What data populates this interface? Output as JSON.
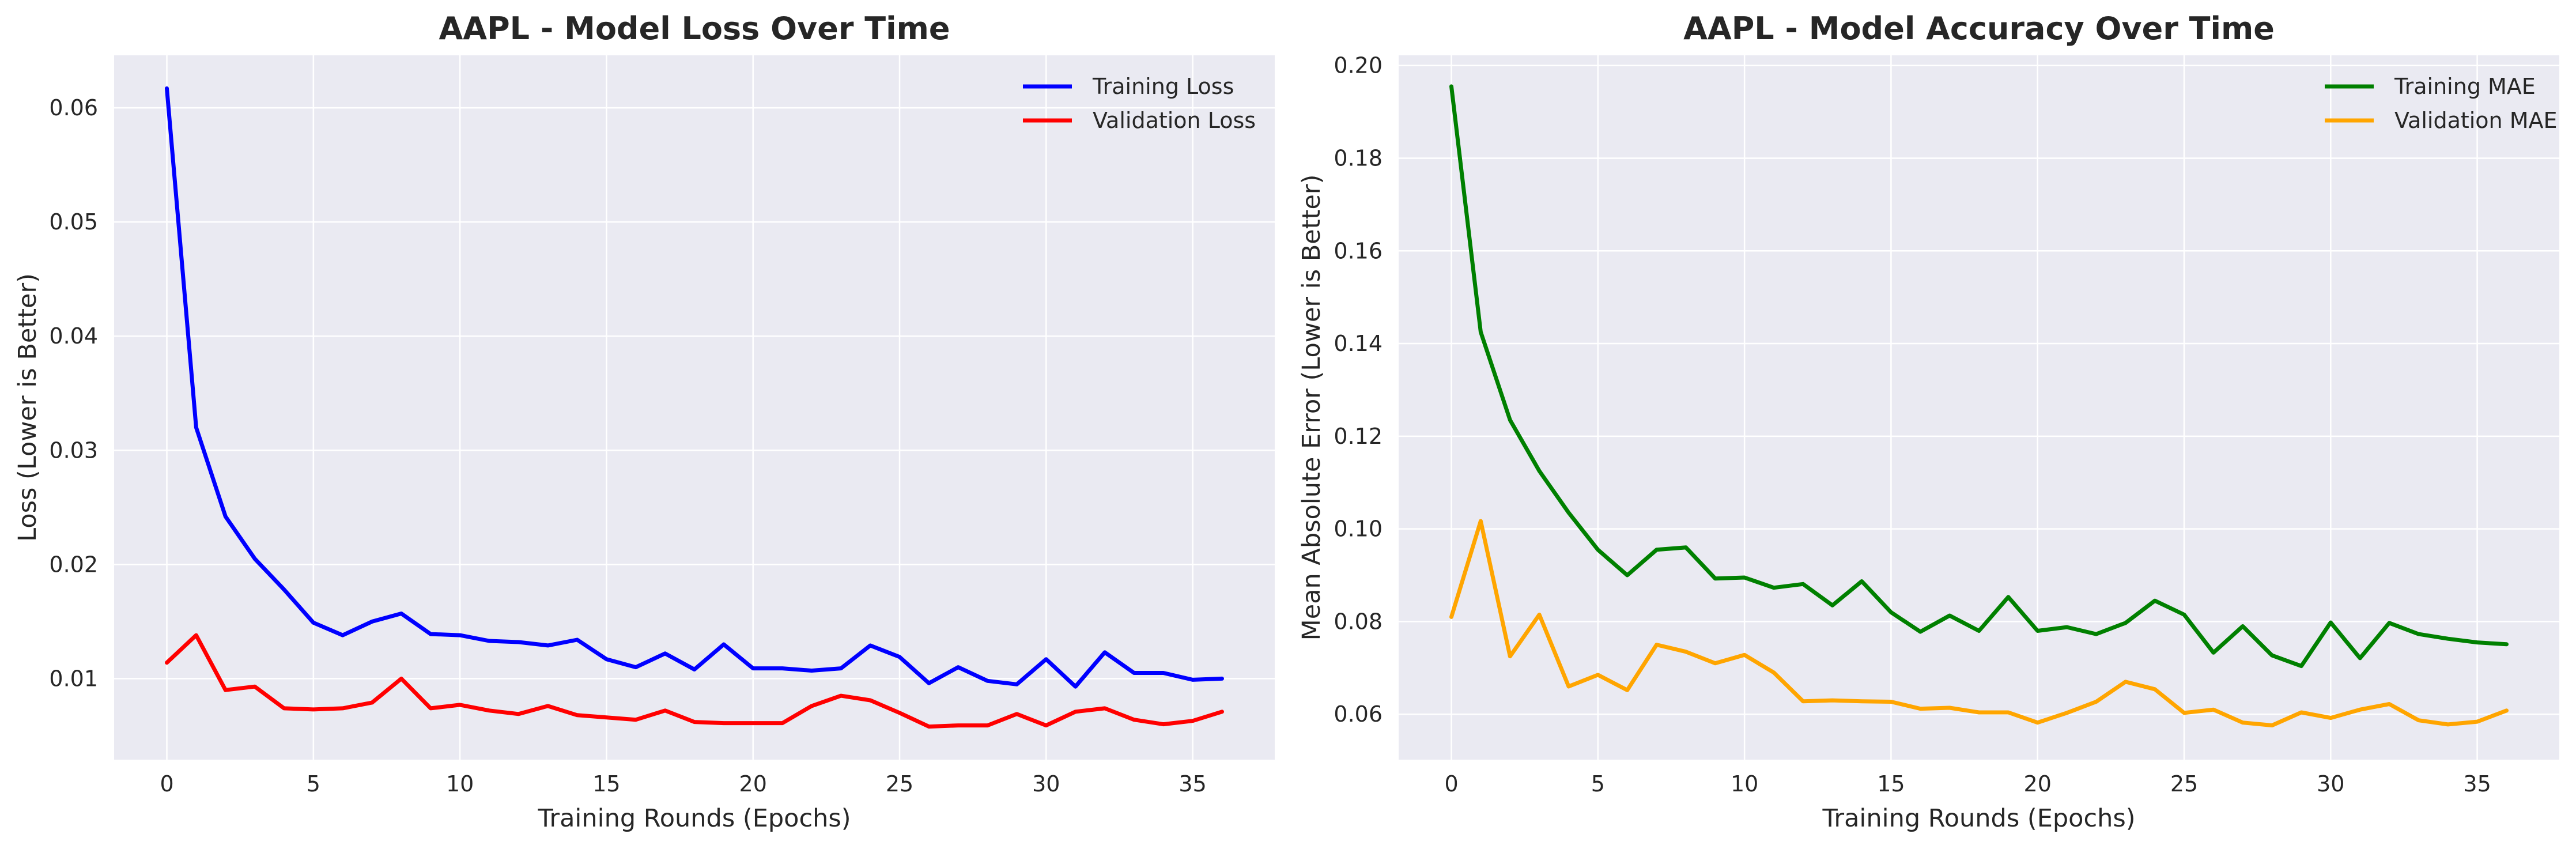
{
  "chart_data": [
    {
      "type": "line",
      "title": "AAPL - Model Loss Over Time",
      "xlabel": "Training Rounds (Epochs)",
      "ylabel": "Loss (Lower is Better)",
      "xlim": [
        -1.8,
        37.8
      ],
      "ylim": [
        0.0029,
        0.0646
      ],
      "xticks": [
        0,
        5,
        10,
        15,
        20,
        25,
        30,
        35
      ],
      "yticks": [
        0.01,
        0.02,
        0.03,
        0.04,
        0.05,
        0.06
      ],
      "xtick_labels": [
        "0",
        "5",
        "10",
        "15",
        "20",
        "25",
        "30",
        "35"
      ],
      "ytick_labels": [
        "0.01",
        "0.02",
        "0.03",
        "0.04",
        "0.05",
        "0.06"
      ],
      "grid": true,
      "legend": "top-right",
      "x": [
        0,
        1,
        2,
        3,
        4,
        5,
        6,
        7,
        8,
        9,
        10,
        11,
        12,
        13,
        14,
        15,
        16,
        17,
        18,
        19,
        20,
        21,
        22,
        23,
        24,
        25,
        26,
        27,
        28,
        29,
        30,
        31,
        32,
        33,
        34,
        35,
        36
      ],
      "series": [
        {
          "name": "Training Loss",
          "color": "#0000ff",
          "values": [
            0.0617,
            0.032,
            0.0242,
            0.0205,
            0.0178,
            0.0149,
            0.0138,
            0.015,
            0.0157,
            0.0139,
            0.0138,
            0.0133,
            0.0132,
            0.0129,
            0.0134,
            0.0117,
            0.011,
            0.0122,
            0.0108,
            0.013,
            0.0109,
            0.0109,
            0.0107,
            0.0109,
            0.0129,
            0.0119,
            0.0096,
            0.011,
            0.0098,
            0.0095,
            0.0117,
            0.0093,
            0.0123,
            0.0105,
            0.0105,
            0.0099,
            0.01
          ]
        },
        {
          "name": "Validation Loss",
          "color": "#ff0000",
          "values": [
            0.0114,
            0.0138,
            0.009,
            0.0093,
            0.0074,
            0.0073,
            0.0074,
            0.0079,
            0.01,
            0.0074,
            0.0077,
            0.0072,
            0.0069,
            0.0076,
            0.0068,
            0.0066,
            0.0064,
            0.0072,
            0.0062,
            0.0061,
            0.0061,
            0.0061,
            0.0076,
            0.0085,
            0.0081,
            0.007,
            0.0058,
            0.0059,
            0.0059,
            0.0069,
            0.0059,
            0.0071,
            0.0074,
            0.0064,
            0.006,
            0.0063,
            0.0071
          ]
        }
      ]
    },
    {
      "type": "line",
      "title": "AAPL - Model Accuracy Over Time",
      "xlabel": "Training Rounds (Epochs)",
      "ylabel": "Mean Absolute Error (Lower is Better)",
      "xlim": [
        -1.8,
        37.8
      ],
      "ylim": [
        0.0502,
        0.2022
      ],
      "xticks": [
        0,
        5,
        10,
        15,
        20,
        25,
        30,
        35
      ],
      "yticks": [
        0.06,
        0.08,
        0.1,
        0.12,
        0.14,
        0.16,
        0.18,
        0.2
      ],
      "xtick_labels": [
        "0",
        "5",
        "10",
        "15",
        "20",
        "25",
        "30",
        "35"
      ],
      "ytick_labels": [
        "0.06",
        "0.08",
        "0.10",
        "0.12",
        "0.14",
        "0.16",
        "0.18",
        "0.20"
      ],
      "grid": true,
      "legend": "top-right",
      "x": [
        0,
        1,
        2,
        3,
        4,
        5,
        6,
        7,
        8,
        9,
        10,
        11,
        12,
        13,
        14,
        15,
        16,
        17,
        18,
        19,
        20,
        21,
        22,
        23,
        24,
        25,
        26,
        27,
        28,
        29,
        30,
        31,
        32,
        33,
        34,
        35,
        36
      ],
      "series": [
        {
          "name": "Training MAE",
          "color": "#008000",
          "values": [
            0.1955,
            0.1425,
            0.1235,
            0.1125,
            0.1035,
            0.0955,
            0.09,
            0.0955,
            0.096,
            0.0893,
            0.0895,
            0.0873,
            0.0881,
            0.0835,
            0.0887,
            0.082,
            0.0778,
            0.0813,
            0.078,
            0.0853,
            0.078,
            0.0788,
            0.0773,
            0.0797,
            0.0845,
            0.0815,
            0.0733,
            0.079,
            0.0727,
            0.0704,
            0.0798,
            0.0721,
            0.0797,
            0.0773,
            0.0763,
            0.0755,
            0.0751
          ]
        },
        {
          "name": "Validation MAE",
          "color": "#ffa500",
          "values": [
            0.081,
            0.1017,
            0.0725,
            0.0815,
            0.066,
            0.0685,
            0.0652,
            0.075,
            0.0735,
            0.071,
            0.0728,
            0.069,
            0.0628,
            0.063,
            0.0628,
            0.0627,
            0.0612,
            0.0614,
            0.0604,
            0.0604,
            0.0582,
            0.0603,
            0.0627,
            0.067,
            0.0654,
            0.0603,
            0.061,
            0.0582,
            0.0576,
            0.0604,
            0.0592,
            0.061,
            0.0622,
            0.0587,
            0.0578,
            0.0584,
            0.0608
          ]
        }
      ]
    }
  ]
}
